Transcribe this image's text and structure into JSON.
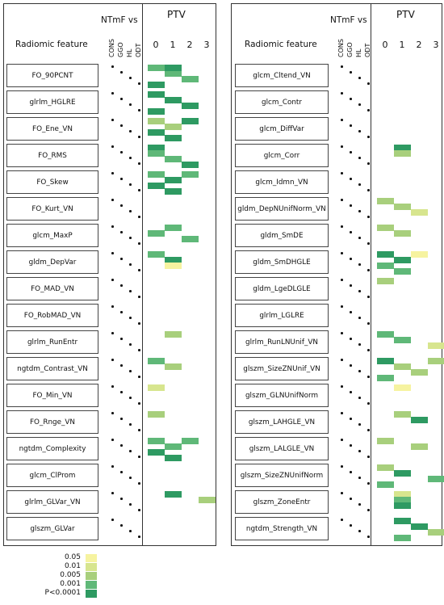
{
  "header": {
    "feature_col_label": "Radiomic feature",
    "ntmf_label": "NTmF vs",
    "ptv_label": "PTV",
    "group_cols": [
      "CONS",
      "GGO",
      "HL",
      "ODT"
    ],
    "ptv_cols": [
      "0",
      "1",
      "2",
      "3"
    ]
  },
  "legend": {
    "items": [
      {
        "label": "0.05",
        "color": "#f6f3a0"
      },
      {
        "label": "0.01",
        "color": "#d7e58e"
      },
      {
        "label": "0.005",
        "color": "#a8cf7c"
      },
      {
        "label": "0.001",
        "color": "#5fb878"
      },
      {
        "label": "P<0.0001",
        "color": "#2e9a62"
      }
    ]
  },
  "left_panel": {
    "features": [
      {
        "name": "FO_90PCNT",
        "ptv": [
          [
            0,
            3
          ],
          [
            1,
            3
          ],
          [
            2,
            3
          ],
          [
            0,
            4
          ],
          [
            1,
            4
          ]
        ]
      },
      {
        "name": "glrlm_HGLRE",
        "ptv": [
          [
            0,
            4
          ],
          [
            1,
            4
          ],
          [
            2,
            4
          ],
          [
            0,
            4
          ]
        ]
      },
      {
        "name": "FO_Ene_VN",
        "ptv": [
          [
            0,
            2
          ],
          [
            1,
            2
          ],
          [
            0,
            4
          ],
          [
            1,
            4
          ],
          [
            2,
            4
          ]
        ]
      },
      {
        "name": "FO_RMS",
        "ptv": [
          [
            0,
            4
          ],
          [
            0,
            3
          ],
          [
            1,
            3
          ],
          [
            2,
            4
          ]
        ]
      },
      {
        "name": "FO_Skew",
        "ptv": [
          [
            0,
            3
          ],
          [
            1,
            4
          ],
          [
            0,
            4
          ],
          [
            1,
            4
          ],
          [
            2,
            3
          ]
        ]
      },
      {
        "name": "FO_Kurt_VN",
        "ptv": []
      },
      {
        "name": "glcm_MaxP",
        "ptv": [
          [
            1,
            3
          ],
          [
            0,
            3
          ],
          [
            2,
            3
          ]
        ]
      },
      {
        "name": "gldm_DepVar",
        "ptv": [
          [
            0,
            3
          ],
          [
            1,
            4
          ],
          [
            1,
            0
          ]
        ]
      },
      {
        "name": "FO_MAD_VN",
        "ptv": []
      },
      {
        "name": "FO_RobMAD_VN",
        "ptv": []
      },
      {
        "name": "glrlm_RunEntr",
        "ptv": [
          [
            1,
            2
          ]
        ]
      },
      {
        "name": "ngtdm_Contrast_VN",
        "ptv": [
          [
            0,
            3
          ],
          [
            1,
            2
          ]
        ]
      },
      {
        "name": "FO_Min_VN",
        "ptv": [
          [
            0,
            1
          ]
        ]
      },
      {
        "name": "FO_Rnge_VN",
        "ptv": [
          [
            0,
            2
          ]
        ]
      },
      {
        "name": "ngtdm_Complexity",
        "ptv": [
          [
            0,
            3
          ],
          [
            1,
            3
          ],
          [
            0,
            4
          ],
          [
            1,
            4
          ],
          [
            2,
            3
          ]
        ]
      },
      {
        "name": "glcm_ClProm",
        "ptv": []
      },
      {
        "name": "glrlm_GLVar_VN",
        "ptv": [
          [
            1,
            4
          ],
          [
            3,
            2
          ]
        ]
      },
      {
        "name": "glszm_GLVar",
        "ptv": []
      }
    ]
  },
  "right_panel": {
    "features": [
      {
        "name": "glcm_Cltend_VN",
        "ptv": []
      },
      {
        "name": "glcm_Contr",
        "ptv": []
      },
      {
        "name": "glcm_DiffVar",
        "ptv": []
      },
      {
        "name": "glcm_Corr",
        "ptv": [
          [
            1,
            4
          ],
          [
            1,
            2
          ]
        ]
      },
      {
        "name": "glcm_Idmn_VN",
        "ptv": []
      },
      {
        "name": "gldm_DepNUnifNorm_VN",
        "ptv": [
          [
            0,
            2
          ],
          [
            1,
            2
          ],
          [
            2,
            1
          ]
        ]
      },
      {
        "name": "gldm_SmDE",
        "ptv": [
          [
            0,
            2
          ],
          [
            1,
            2
          ]
        ]
      },
      {
        "name": "gldm_SmDHGLE",
        "ptv": [
          [
            0,
            4
          ],
          [
            1,
            4
          ],
          [
            0,
            3
          ],
          [
            1,
            3
          ],
          [
            2,
            0
          ]
        ]
      },
      {
        "name": "gldm_LgeDLGLE",
        "ptv": [
          [
            0,
            2
          ]
        ]
      },
      {
        "name": "glrlm_LGLRE",
        "ptv": []
      },
      {
        "name": "glrlm_RunLNUnif_VN",
        "ptv": [
          [
            0,
            3
          ],
          [
            1,
            3
          ],
          [
            3,
            1
          ]
        ]
      },
      {
        "name": "glszm_SizeZNUnif_VN",
        "ptv": [
          [
            0,
            4
          ],
          [
            1,
            2
          ],
          [
            2,
            2
          ],
          [
            0,
            3
          ],
          [
            3,
            2
          ]
        ]
      },
      {
        "name": "glszm_GLNUnifNorm",
        "ptv": [
          [
            1,
            0
          ]
        ]
      },
      {
        "name": "glszm_LAHGLE_VN",
        "ptv": [
          [
            1,
            2
          ],
          [
            2,
            4
          ]
        ]
      },
      {
        "name": "glszm_LALGLE_VN",
        "ptv": [
          [
            0,
            2
          ],
          [
            2,
            2
          ]
        ]
      },
      {
        "name": "glszm_SizeZNUnifNorm",
        "ptv": [
          [
            0,
            2
          ],
          [
            1,
            4
          ],
          [
            3,
            3
          ],
          [
            0,
            3
          ]
        ]
      },
      {
        "name": "glszm_ZoneEntr",
        "ptv": [
          [
            1,
            1
          ],
          [
            1,
            3
          ],
          [
            1,
            4
          ]
        ]
      },
      {
        "name": "ngtdm_Strength_VN",
        "ptv": [
          [
            1,
            4
          ],
          [
            2,
            4
          ],
          [
            3,
            2
          ],
          [
            1,
            3
          ]
        ]
      }
    ]
  }
}
